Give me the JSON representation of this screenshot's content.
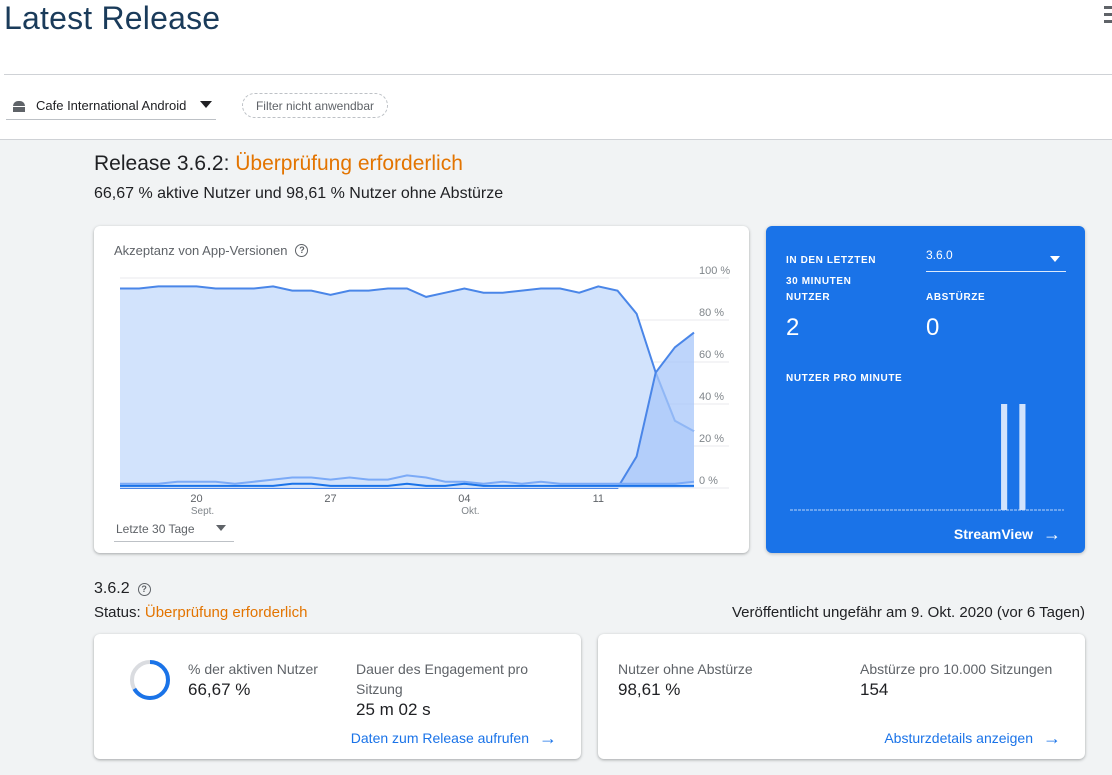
{
  "page": {
    "title": "Latest Release"
  },
  "colors": {
    "accent": "#1a73e8",
    "warning": "#e37400",
    "area_fill": "#d2e3fc"
  },
  "toolbar": {
    "app_name": "Cafe International Android",
    "filter_chip": "Filter nicht anwendbar"
  },
  "release": {
    "prefix": "Release 3.6.2: ",
    "status": "Überprüfung erforderlich",
    "summary": "66,67 % aktive Nutzer und 98,61 % Nutzer ohne Abstürze"
  },
  "adoption_chart": {
    "heading": "Akzeptanz von App-Versionen",
    "range_select": "Letzte 30 Tage",
    "chart_data": {
      "type": "area",
      "x": [
        "16.09",
        "17.09",
        "18.09",
        "19.09",
        "20.09",
        "21.09",
        "22.09",
        "23.09",
        "24.09",
        "25.09",
        "26.09",
        "27.09",
        "28.09",
        "29.09",
        "30.09",
        "01.10",
        "02.10",
        "03.10",
        "04.10",
        "05.10",
        "06.10",
        "07.10",
        "08.10",
        "09.10",
        "10.10",
        "11.10",
        "12.10",
        "13.10",
        "14.10",
        "15.10",
        "16.10"
      ],
      "x_tick_labels": [
        {
          "at": "20.09",
          "label": "20",
          "sub": "Sept."
        },
        {
          "at": "27.09",
          "label": "27",
          "sub": ""
        },
        {
          "at": "04.10",
          "label": "04",
          "sub": "Okt."
        },
        {
          "at": "11.10",
          "label": "11",
          "sub": ""
        }
      ],
      "y_tick_labels": [
        "0 %",
        "20 %",
        "40 %",
        "60 %",
        "80 %",
        "100 %"
      ],
      "ylim": [
        0,
        100
      ],
      "series": [
        {
          "values": [
            95,
            95,
            96,
            96,
            96,
            95,
            95,
            95,
            96,
            94,
            94,
            92,
            94,
            94,
            95,
            95,
            91,
            93,
            95,
            93,
            93,
            94,
            95,
            95,
            93,
            96,
            94,
            83,
            55,
            32,
            27
          ]
        },
        {
          "values": [
            0,
            0,
            0,
            0,
            0,
            0,
            0,
            0,
            0,
            0,
            0,
            0,
            0,
            0,
            0,
            0,
            0,
            0,
            0,
            0,
            0,
            0,
            0,
            0,
            0,
            0,
            0,
            15,
            55,
            67,
            74
          ]
        },
        {
          "values": [
            2,
            2,
            2,
            3,
            3,
            3,
            2,
            3,
            4,
            5,
            5,
            4,
            5,
            4,
            4,
            6,
            5,
            3,
            3,
            2,
            3,
            2,
            3,
            2,
            2,
            2,
            2,
            2,
            2,
            2,
            3
          ]
        },
        {
          "values": [
            1,
            1,
            1,
            1,
            1,
            1,
            1,
            1,
            1,
            2,
            2,
            1,
            1,
            1,
            1,
            2,
            1,
            1,
            2,
            1,
            1,
            1,
            1,
            1,
            1,
            1,
            1,
            1,
            1,
            1,
            1
          ]
        }
      ]
    }
  },
  "realtime": {
    "heading_line1": "IN DEN LETZTEN",
    "heading_line2": "30 MINUTEN",
    "version": "3.6.0",
    "users_label": "NUTZER",
    "users_value": "2",
    "crashes_label": "ABSTÜRZE",
    "crashes_value": "0",
    "per_minute_label": "NUTZER PRO MINUTE",
    "per_minute_values": [
      0,
      0,
      0,
      0,
      0,
      0,
      0,
      0,
      0,
      0,
      0,
      0,
      0,
      0,
      0,
      0,
      0,
      0,
      0,
      0,
      0,
      0,
      0,
      1,
      0,
      1,
      0,
      0,
      0,
      0
    ],
    "link": "StreamView"
  },
  "version_detail": {
    "version": "3.6.2",
    "status_prefix": "Status: ",
    "status": "Überprüfung erforderlich",
    "published": "Veröffentlicht ungefähr am 9. Okt. 2020 (vor 6 Tagen)"
  },
  "stats_left": {
    "active_label": "% der aktiven Nutzer",
    "active_value": "66,67 %",
    "active_fraction": 0.6667,
    "engagement_label_1": "Dauer des Engagement pro",
    "engagement_label_2": "Sitzung",
    "engagement_value": "25 m 02 s",
    "link": "Daten zum Release aufrufen"
  },
  "stats_right": {
    "crash_free_label": "Nutzer ohne Abstürze",
    "crash_free_value": "98,61 %",
    "crashes_label": "Abstürze pro 10.000 Sitzungen",
    "crashes_value": "154",
    "link": "Absturzdetails anzeigen"
  }
}
